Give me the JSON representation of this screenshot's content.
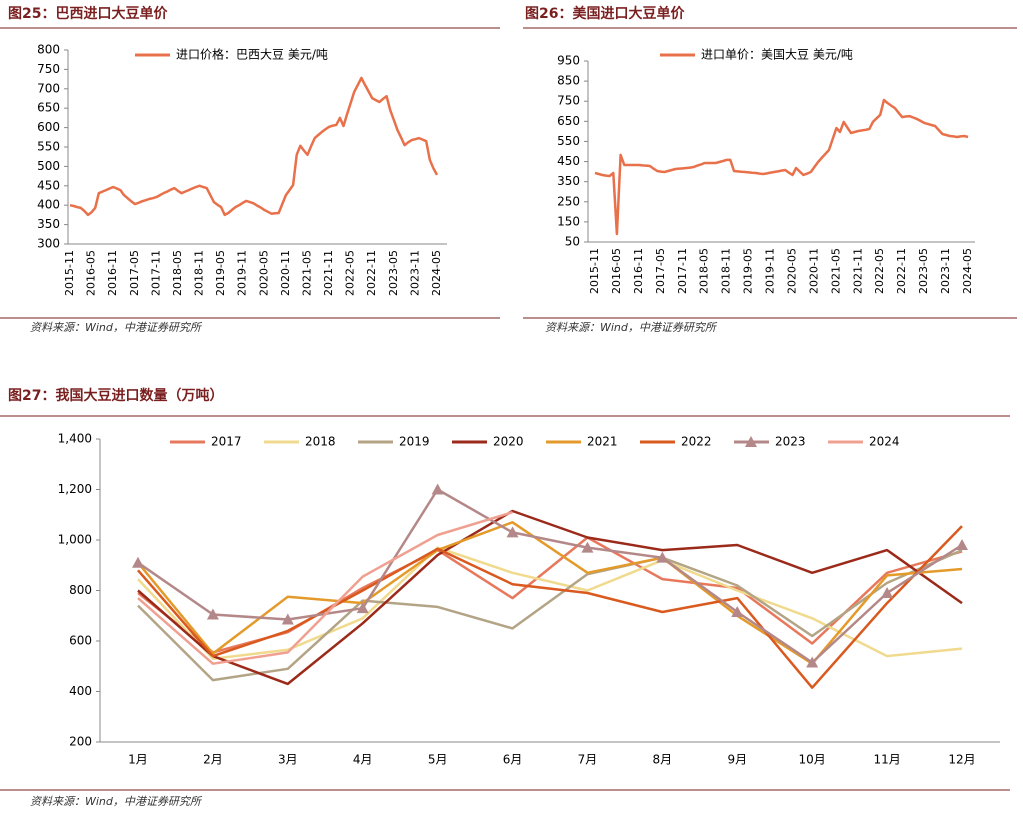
{
  "chart_data": [
    {
      "type": "line",
      "title": "图25：巴西进口大豆单价",
      "source": "资料来源：Wind，中港证券研究所",
      "categories": [
        "2015-11",
        null,
        null,
        null,
        null,
        null,
        "2016-05",
        null,
        null,
        null,
        null,
        null,
        "2016-11",
        null,
        null,
        null,
        null,
        null,
        "2017-05",
        null,
        null,
        null,
        null,
        null,
        "2017-11",
        null,
        null,
        null,
        null,
        null,
        "2018-05",
        null,
        null,
        null,
        null,
        null,
        "2018-11",
        null,
        null,
        null,
        null,
        null,
        "2019-05",
        null,
        null,
        null,
        null,
        null,
        "2019-11",
        null,
        null,
        null,
        null,
        null,
        "2020-05",
        null,
        null,
        null,
        null,
        null,
        "2020-11",
        null,
        null,
        null,
        null,
        null,
        "2021-05",
        null,
        null,
        null,
        null,
        null,
        "2021-11",
        null,
        null,
        null,
        null,
        null,
        "2022-05",
        null,
        null,
        null,
        null,
        null,
        "2022-11",
        null,
        null,
        null,
        null,
        null,
        "2023-05",
        null,
        null,
        null,
        null,
        null,
        "2023-11",
        null,
        null,
        null,
        null,
        null,
        "2024-05"
      ],
      "series": [
        {
          "name": "进口价格：巴西大豆 美元/吨",
          "color": "#e8704a",
          "values": [
            400,
            398,
            395,
            393,
            385,
            375,
            382,
            393,
            431,
            435,
            439,
            443,
            447,
            443,
            439,
            426,
            418,
            410,
            403,
            406,
            410,
            413,
            416,
            418,
            421,
            426,
            431,
            435,
            440,
            444,
            437,
            431,
            435,
            439,
            443,
            447,
            450,
            447,
            444,
            426,
            408,
            401,
            395,
            375,
            380,
            388,
            395,
            400,
            406,
            411,
            408,
            405,
            399,
            394,
            388,
            383,
            378,
            379,
            380,
            403,
            426,
            439,
            452,
            530,
            553,
            541,
            530,
            552,
            573,
            581,
            589,
            596,
            602,
            605,
            607,
            625,
            604,
            634,
            663,
            692,
            710,
            728,
            710,
            693,
            676,
            671,
            666,
            674,
            681,
            645,
            620,
            594,
            575,
            555,
            562,
            568,
            570,
            573,
            569,
            565,
            517,
            495,
            478
          ]
        }
      ],
      "ylim": [
        300,
        800
      ],
      "yticks": [
        300,
        350,
        400,
        450,
        500,
        550,
        600,
        650,
        700,
        750,
        800
      ]
    },
    {
      "type": "line",
      "title": "图26：美国进口大豆单价",
      "source": "资料来源：Wind，中港证券研究所",
      "categories": [
        "2015-11",
        null,
        null,
        null,
        null,
        null,
        "2016-05",
        null,
        null,
        null,
        null,
        null,
        "2016-11",
        null,
        null,
        null,
        null,
        null,
        "2017-05",
        null,
        null,
        null,
        null,
        null,
        "2017-11",
        null,
        null,
        null,
        null,
        null,
        "2018-05",
        null,
        null,
        null,
        null,
        null,
        "2018-11",
        null,
        null,
        null,
        null,
        null,
        "2019-05",
        null,
        null,
        null,
        null,
        null,
        "2019-11",
        null,
        null,
        null,
        null,
        null,
        "2020-05",
        null,
        null,
        null,
        null,
        null,
        "2020-11",
        null,
        null,
        null,
        null,
        null,
        "2021-05",
        null,
        null,
        null,
        null,
        null,
        "2021-11",
        null,
        null,
        null,
        null,
        null,
        "2022-05",
        null,
        null,
        null,
        null,
        null,
        "2022-11",
        null,
        null,
        null,
        null,
        null,
        "2023-05",
        null,
        null,
        null,
        null,
        null,
        "2023-11",
        null,
        null,
        null,
        null,
        null,
        "2024-05"
      ],
      "series": [
        {
          "name": "进口单价：美国大豆 美元/吨",
          "color": "#e8704a",
          "values": [
            393,
            388,
            383,
            380,
            378,
            393,
            90,
            483,
            433,
            433,
            433,
            433,
            433,
            431,
            430,
            428,
            415,
            403,
            400,
            398,
            403,
            408,
            413,
            415,
            416,
            418,
            420,
            423,
            430,
            436,
            443,
            443,
            443,
            443,
            448,
            453,
            458,
            458,
            403,
            401,
            399,
            398,
            396,
            394,
            393,
            390,
            388,
            391,
            395,
            398,
            401,
            405,
            408,
            395,
            383,
            418,
            400,
            383,
            390,
            398,
            423,
            448,
            468,
            488,
            508,
            562,
            617,
            597,
            647,
            620,
            592,
            597,
            602,
            605,
            608,
            612,
            647,
            665,
            682,
            756,
            741,
            728,
            716,
            693,
            671,
            674,
            676,
            669,
            662,
            652,
            642,
            637,
            632,
            627,
            607,
            587,
            582,
            577,
            575,
            572,
            575,
            577,
            572
          ]
        }
      ],
      "ylim": [
        50,
        950
      ],
      "yticks": [
        50,
        150,
        250,
        350,
        450,
        550,
        650,
        750,
        850,
        950
      ]
    },
    {
      "type": "line",
      "title": "图27：我国大豆进口数量（万吨）",
      "source": "资料来源：Wind，中港证券研究所",
      "categories": [
        "1月",
        "2月",
        "3月",
        "4月",
        "5月",
        "6月",
        "7月",
        "8月",
        "9月",
        "10月",
        "11月",
        "12月"
      ],
      "series": [
        {
          "name": "2017",
          "color": "#e8785c",
          "values": [
            790,
            555,
            635,
            810,
            960,
            770,
            1010,
            845,
            810,
            590,
            870,
            955
          ]
        },
        {
          "name": "2018",
          "color": "#f0da8e",
          "values": [
            845,
            530,
            565,
            690,
            970,
            870,
            800,
            920,
            800,
            690,
            540,
            570
          ]
        },
        {
          "name": "2019",
          "color": "#b3a486",
          "values": [
            740,
            445,
            490,
            760,
            735,
            650,
            865,
            930,
            820,
            620,
            830,
            960
          ]
        },
        {
          "name": "2020",
          "color": "#9b2a1a",
          "values": [
            800,
            540,
            430,
            670,
            940,
            1115,
            1010,
            960,
            980,
            870,
            960,
            750
          ]
        },
        {
          "name": "2021",
          "color": "#e39a2a",
          "values": [
            910,
            550,
            775,
            750,
            960,
            1070,
            870,
            930,
            700,
            510,
            860,
            885
          ]
        },
        {
          "name": "2022",
          "color": "#d9591e",
          "values": [
            880,
            540,
            640,
            800,
            965,
            825,
            790,
            715,
            770,
            415,
            750,
            1055
          ]
        },
        {
          "name": "2023",
          "color": "#b48888",
          "marker": "triangle",
          "values": [
            910,
            705,
            685,
            730,
            1200,
            1030,
            970,
            930,
            715,
            515,
            790,
            980
          ]
        },
        {
          "name": "2024",
          "color": "#f0a090",
          "values": [
            770,
            510,
            555,
            855,
            1020,
            1110,
            null,
            null,
            null,
            null,
            null,
            null
          ]
        }
      ],
      "ylim": [
        200,
        1400
      ],
      "yticks": [
        200,
        400,
        600,
        800,
        {
          "value": 1000,
          "label": "1,000"
        },
        {
          "value": 1200,
          "label": "1,200"
        },
        {
          "value": 1400,
          "label": "1,400"
        }
      ]
    }
  ]
}
